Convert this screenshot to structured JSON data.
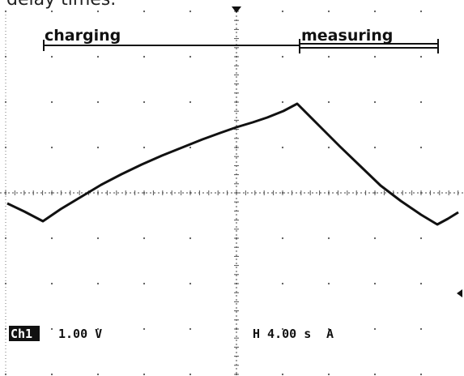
{
  "caption": "delay times.",
  "phases": {
    "charging": "charging",
    "measuring": "measuring"
  },
  "status": {
    "channel": "Ch1",
    "scale": "1.00 V",
    "timebase": "H 4.00 s",
    "trigger": "A"
  }
}
